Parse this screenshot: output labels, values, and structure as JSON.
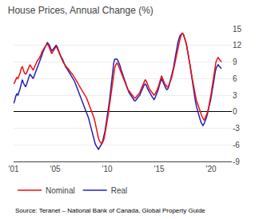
{
  "chart_data": {
    "type": "line",
    "title": "House Prices, Annual Change (%)",
    "source": "Source: Teranet – National Bank of Canada, Global Property Guide",
    "x": [
      2001,
      2001.1047,
      2001.2094,
      2001.3141,
      2001.4188,
      2001.5236,
      2001.6283,
      2001.733,
      2001.8377,
      2001.9424,
      2002.0471,
      2002.1518,
      2002.2565,
      2002.3613,
      2002.466,
      2002.5707,
      2002.6754,
      2002.7801,
      2002.8848,
      2002.9895,
      2003.0942,
      2003.199,
      2003.3037,
      2003.4084,
      2003.5131,
      2003.6178,
      2003.7225,
      2003.8272,
      2003.9319,
      2004.0366,
      2004.1414,
      2004.2461,
      2004.3508,
      2004.4555,
      2004.5602,
      2004.6649,
      2004.7696,
      2004.8743,
      2004.9791,
      2005.0838,
      2005.1885,
      2005.2932,
      2005.3979,
      2005.5026,
      2005.6073,
      2005.712,
      2005.8168,
      2005.9215,
      2006.0262,
      2006.1309,
      2006.2356,
      2006.3403,
      2006.445,
      2006.5497,
      2006.6545,
      2006.7592,
      2006.8639,
      2006.9686,
      2007.0733,
      2007.178,
      2007.2827,
      2007.3874,
      2007.4921,
      2007.5969,
      2007.7016,
      2007.8063,
      2007.911,
      2008.0157,
      2008.1204,
      2008.2251,
      2008.3298,
      2008.4346,
      2008.5393,
      2008.644,
      2008.7487,
      2008.8534,
      2008.9581,
      2009.0628,
      2009.1675,
      2009.2723,
      2009.377,
      2009.4817,
      2009.5864,
      2009.6911,
      2009.7958,
      2009.9005,
      2010.0052,
      2010.1099,
      2010.2147,
      2010.3194,
      2010.4241,
      2010.5288,
      2010.6335,
      2010.7382,
      2010.8429,
      2010.9476,
      2011.0524,
      2011.1571,
      2011.2618,
      2011.3665,
      2011.4712,
      2011.5759,
      2011.6806,
      2011.7853,
      2011.8901,
      2011.9948,
      2012.0995,
      2012.2042,
      2012.3089,
      2012.4136,
      2012.5183,
      2012.623,
      2012.7277,
      2012.8325,
      2012.9372,
      2013.0419,
      2013.1466,
      2013.2513,
      2013.356,
      2013.4607,
      2013.5654,
      2013.6702,
      2013.7749,
      2013.8796,
      2013.9843,
      2014.089,
      2014.1937,
      2014.2984,
      2014.4031,
      2014.5079,
      2014.6126,
      2014.7173,
      2014.822,
      2014.9267,
      2015.0314,
      2015.1361,
      2015.2408,
      2015.3455,
      2015.4503,
      2015.555,
      2015.6597,
      2015.7644,
      2015.8691,
      2015.9738,
      2016.0785,
      2016.1832,
      2016.288,
      2016.3927,
      2016.4974,
      2016.6021,
      2016.7068,
      2016.8115,
      2016.9162,
      2017.0209,
      2017.1257,
      2017.2304,
      2017.3351,
      2017.4398,
      2017.5445,
      2017.6492,
      2017.7539,
      2017.8586,
      2017.9634,
      2018.0681,
      2018.1728,
      2018.2775,
      2018.3822,
      2018.4869,
      2018.5916,
      2018.6963,
      2018.801,
      2018.9058,
      2019.0105,
      2019.1152,
      2019.2199,
      2019.3246,
      2019.4293,
      2019.534,
      2019.6387,
      2019.7435,
      2019.8482,
      2019.9529,
      2020.0576,
      2020.1623,
      2020.267,
      2020.3717,
      2020.4764,
      2020.5812,
      2020.6859,
      2020.7906,
      2020.8953,
      2021
    ],
    "series": [
      {
        "name": "Nominal",
        "color": "#ee1111",
        "values": [
          5.0,
          5.3,
          5.8,
          6.2,
          6.0,
          6.5,
          7.0,
          7.8,
          8.2,
          7.5,
          7.0,
          6.8,
          7.0,
          7.5,
          8.0,
          8.5,
          8.2,
          7.8,
          7.5,
          8.0,
          8.5,
          9.0,
          9.3,
          9.5,
          9.8,
          10.2,
          10.8,
          11.2,
          11.5,
          11.8,
          12.0,
          12.2,
          12.0,
          11.5,
          11.0,
          10.5,
          10.8,
          11.2,
          11.5,
          11.8,
          11.5,
          11.0,
          10.5,
          10.0,
          9.5,
          9.2,
          8.8,
          8.5,
          8.2,
          8.0,
          7.8,
          7.5,
          7.2,
          7.0,
          6.8,
          6.5,
          6.2,
          5.8,
          5.5,
          5.2,
          4.8,
          4.5,
          4.2,
          3.8,
          3.5,
          3.2,
          2.8,
          2.5,
          2.0,
          1.5,
          1.0,
          0.5,
          0.0,
          -0.5,
          -1.2,
          -2.0,
          -3.0,
          -4.0,
          -4.8,
          -5.3,
          -5.6,
          -5.8,
          -5.5,
          -5.0,
          -4.0,
          -3.0,
          -1.8,
          -0.5,
          1.0,
          2.5,
          4.0,
          5.5,
          7.0,
          8.0,
          8.5,
          8.8,
          8.5,
          8.0,
          7.5,
          7.0,
          6.5,
          6.0,
          5.5,
          5.0,
          4.5,
          4.0,
          3.8,
          3.5,
          3.2,
          3.0,
          2.8,
          2.5,
          2.5,
          2.8,
          3.0,
          3.2,
          3.5,
          4.0,
          4.5,
          5.0,
          5.5,
          5.8,
          5.5,
          5.0,
          4.5,
          4.0,
          3.8,
          3.5,
          3.2,
          3.0,
          3.2,
          3.5,
          4.0,
          4.5,
          5.2,
          6.0,
          6.5,
          6.0,
          5.5,
          5.0,
          4.8,
          4.5,
          4.5,
          5.0,
          5.5,
          6.0,
          6.8,
          7.5,
          8.5,
          9.5,
          10.5,
          11.5,
          12.5,
          13.2,
          13.8,
          14.2,
          14.0,
          13.5,
          12.8,
          12.0,
          11.0,
          10.0,
          8.8,
          7.5,
          6.2,
          5.0,
          3.8,
          2.8,
          2.0,
          1.5,
          1.0,
          0.5,
          -0.2,
          -0.8,
          -1.2,
          -1.5,
          -1.2,
          -0.8,
          -0.2,
          0.5,
          1.5,
          2.5,
          3.8,
          5.2,
          6.5,
          7.8,
          9.0,
          9.5,
          9.8,
          9.5,
          9.2,
          9.0
        ]
      },
      {
        "name": "Real",
        "color": "#2222bb",
        "values": [
          1.5,
          2.0,
          2.8,
          3.2,
          3.0,
          3.5,
          4.2,
          5.0,
          5.8,
          5.2,
          4.8,
          4.5,
          5.0,
          5.5,
          6.2,
          6.8,
          6.5,
          6.2,
          6.0,
          6.5,
          7.0,
          7.5,
          8.0,
          8.5,
          9.0,
          9.5,
          10.2,
          10.8,
          11.2,
          11.8,
          12.2,
          12.5,
          12.3,
          12.0,
          11.5,
          11.0,
          11.2,
          11.5,
          11.8,
          12.0,
          11.8,
          11.2,
          10.8,
          10.2,
          9.8,
          9.5,
          9.0,
          8.5,
          8.0,
          7.8,
          7.5,
          7.2,
          6.8,
          6.5,
          6.2,
          5.8,
          5.5,
          5.0,
          4.5,
          4.0,
          3.5,
          3.0,
          2.5,
          2.0,
          1.5,
          1.0,
          0.5,
          0.0,
          -0.5,
          -1.2,
          -2.0,
          -2.8,
          -3.5,
          -4.2,
          -5.0,
          -5.8,
          -6.2,
          -6.5,
          -6.8,
          -6.5,
          -6.2,
          -5.8,
          -5.2,
          -4.5,
          -3.5,
          -2.2,
          -1.0,
          0.2,
          1.8,
          3.5,
          5.2,
          7.0,
          8.8,
          9.5,
          9.5,
          9.5,
          9.2,
          8.8,
          8.2,
          7.5,
          7.0,
          6.5,
          5.8,
          5.2,
          4.5,
          4.0,
          3.5,
          3.2,
          2.8,
          2.5,
          2.2,
          2.0,
          2.0,
          2.2,
          2.5,
          2.8,
          3.0,
          3.5,
          4.0,
          4.5,
          4.8,
          5.0,
          4.8,
          4.2,
          3.8,
          3.5,
          3.2,
          2.8,
          2.5,
          2.2,
          2.5,
          3.0,
          3.5,
          4.0,
          4.8,
          5.5,
          6.0,
          5.5,
          5.0,
          4.5,
          4.2,
          4.0,
          4.2,
          4.8,
          5.5,
          6.2,
          7.0,
          8.0,
          9.2,
          10.5,
          11.5,
          12.5,
          13.2,
          13.8,
          14.0,
          14.2,
          14.0,
          13.5,
          12.8,
          12.0,
          11.0,
          9.8,
          8.5,
          7.2,
          5.8,
          4.5,
          3.2,
          2.0,
          1.0,
          0.2,
          -0.5,
          -1.0,
          -1.8,
          -2.2,
          -2.5,
          -2.2,
          -1.8,
          -1.2,
          -0.5,
          0.2,
          1.2,
          2.0,
          3.0,
          4.2,
          5.5,
          6.8,
          7.8,
          8.2,
          8.5,
          8.2,
          8.0,
          7.8
        ]
      }
    ],
    "xlim": [
      2001,
      2022
    ],
    "xticks": [
      {
        "value": 2001,
        "label": "'01"
      },
      {
        "value": 2005,
        "label": "'05"
      },
      {
        "value": 2010,
        "label": "'10"
      },
      {
        "value": 2015,
        "label": "'15"
      },
      {
        "value": 2020,
        "label": "'20"
      }
    ],
    "ylim": [
      -9,
      15
    ],
    "yticks": [
      -9,
      -6,
      -3,
      0,
      3,
      6,
      9,
      12,
      15
    ],
    "grid": true,
    "legend": "bottom"
  }
}
